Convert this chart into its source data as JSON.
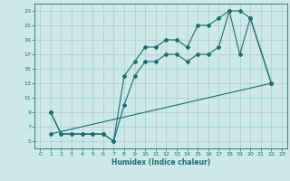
{
  "bg_color": "#cce8e8",
  "grid_color": "#aacaca",
  "line_color": "#1e6b6b",
  "xlabel": "Humidex (Indice chaleur)",
  "xlim": [
    -0.5,
    23.5
  ],
  "ylim": [
    4,
    24
  ],
  "xticks": [
    0,
    1,
    2,
    3,
    4,
    5,
    6,
    7,
    8,
    9,
    10,
    11,
    12,
    13,
    14,
    15,
    16,
    17,
    18,
    19,
    20,
    21,
    22,
    23
  ],
  "yticks": [
    5,
    7,
    9,
    11,
    13,
    15,
    17,
    19,
    21,
    23
  ],
  "line1_x": [
    1,
    2,
    3,
    4,
    5,
    6,
    7,
    8,
    9,
    10,
    11,
    12,
    13,
    14,
    15,
    16,
    17,
    18,
    19,
    20,
    22
  ],
  "line1_y": [
    9,
    6,
    6,
    6,
    6,
    6,
    5,
    14,
    16,
    18,
    18,
    19,
    19,
    18,
    21,
    21,
    22,
    23,
    23,
    22,
    13
  ],
  "line2_x": [
    1,
    2,
    3,
    4,
    5,
    6,
    7,
    8,
    9,
    10,
    11,
    12,
    13,
    14,
    15,
    16,
    17,
    18,
    19,
    20,
    22
  ],
  "line2_y": [
    9,
    6,
    6,
    6,
    6,
    6,
    5,
    10,
    14,
    16,
    16,
    17,
    17,
    16,
    17,
    17,
    18,
    23,
    17,
    22,
    13
  ],
  "line3_x": [
    1,
    22
  ],
  "line3_y": [
    6,
    13
  ]
}
